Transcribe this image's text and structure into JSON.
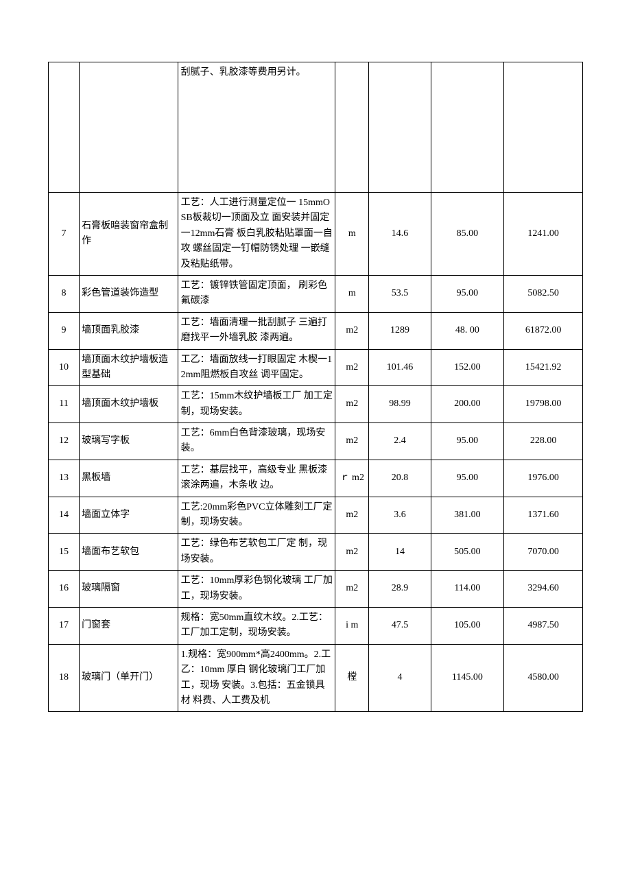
{
  "table": {
    "rows": [
      {
        "no": "",
        "name": "",
        "desc": "刮腻子、乳胶漆等费用另计。",
        "unit": "",
        "qty": "",
        "price": "",
        "total": "",
        "row_class": "row0-spacer",
        "desc_valign": "top"
      },
      {
        "no": "7",
        "name": "石膏板暗装窗帘盒制作",
        "desc": "工艺：人工进行测量定位一 15mmOSB板裁切一顶面及立 面安装并固定一12mm石膏 板白乳胶粘贴罩面一自攻 螺丝固定一钉帽防锈处理 一嵌缝及粘贴纸带。",
        "unit": "m",
        "qty": "14.6",
        "price": "85.00",
        "total": "1241.00"
      },
      {
        "no": "8",
        "name": "彩色管道装饰造型",
        "desc": "工艺：镀锌铁管固定顶面，  刷彩色氟碳漆",
        "unit": "m",
        "qty": "53.5",
        "price": "95.00",
        "total": "5082.50"
      },
      {
        "no": "9",
        "name": "墙顶面乳胶漆",
        "desc": "工艺：墙面清理一批刮腻子 三遍打磨找平一外墙乳胶 漆两遍。",
        "unit": "m2",
        "qty": "1289",
        "price": "48. 00",
        "total": "61872.00"
      },
      {
        "no": "10",
        "name": "墙顶面木纹护墙板造型基础",
        "desc": "工乙：墙面放线一打眼固定 木楔一12mm阻燃板自攻丝 调平固定。",
        "unit": "m2",
        "qty": "101.46",
        "price": "152.00",
        "total": "15421.92"
      },
      {
        "no": "11",
        "name": "墙顶面木纹护墙板",
        "desc": "工艺：15mm木纹护墙板工厂 加工定制，现场安装。",
        "unit": "m2",
        "qty": "98.99",
        "price": "200.00",
        "total": "19798.00"
      },
      {
        "no": "12",
        "name": "玻璃写字板",
        "desc": "工艺：6mm白色背漆玻璃，现场安装。",
        "unit": "m2",
        "qty": "2.4",
        "price": "95.00",
        "total": "228.00"
      },
      {
        "no": "13",
        "name": "黑板墙",
        "desc": "工艺：基层找平，高级专业 黑板漆滚涂两遍，木条收 边。",
        "unit": "ｒ m2",
        "qty": "20.8",
        "price": "95.00",
        "total": "1976.00"
      },
      {
        "no": "14",
        "name": "墙面立体字",
        "desc": "工艺:20mm彩色PVC立体雕刻工厂定制，现场安装。",
        "unit": "m2",
        "qty": "3.6",
        "price": "381.00",
        "total": "1371.60"
      },
      {
        "no": "15",
        "name": "墙面布艺软包",
        "desc": "工艺：绿色布艺软包工厂定 制，现场安装。",
        "unit": "m2",
        "qty": "14",
        "price": "505.00",
        "total": "7070.00"
      },
      {
        "no": "16",
        "name": "玻璃隔窗",
        "desc": "工艺：10mm厚彩色钢化玻璃 工厂加工，现场安装。",
        "unit": "m2",
        "qty": "28.9",
        "price": "114.00",
        "total": "3294.60"
      },
      {
        "no": "17",
        "name": "门窗套",
        "desc": "规格：宽50mm直纹木纹。2.工艺：工厂加工定制，现场安装。",
        "unit": "i m",
        "qty": "47.5",
        "price": "105.00",
        "total": "4987.50"
      },
      {
        "no": "18",
        "name": "玻璃门（单开门）",
        "desc": "1.规格：宽900mm*高2400mm。2.工乙：10mm 厚白 钢化玻璃门工厂加工，现场 安装。3.包括：五金锁具材 料费、人工费及机",
        "unit": "樘",
        "qty": "4",
        "price": "1145.00",
        "total": "4580.00"
      }
    ]
  }
}
